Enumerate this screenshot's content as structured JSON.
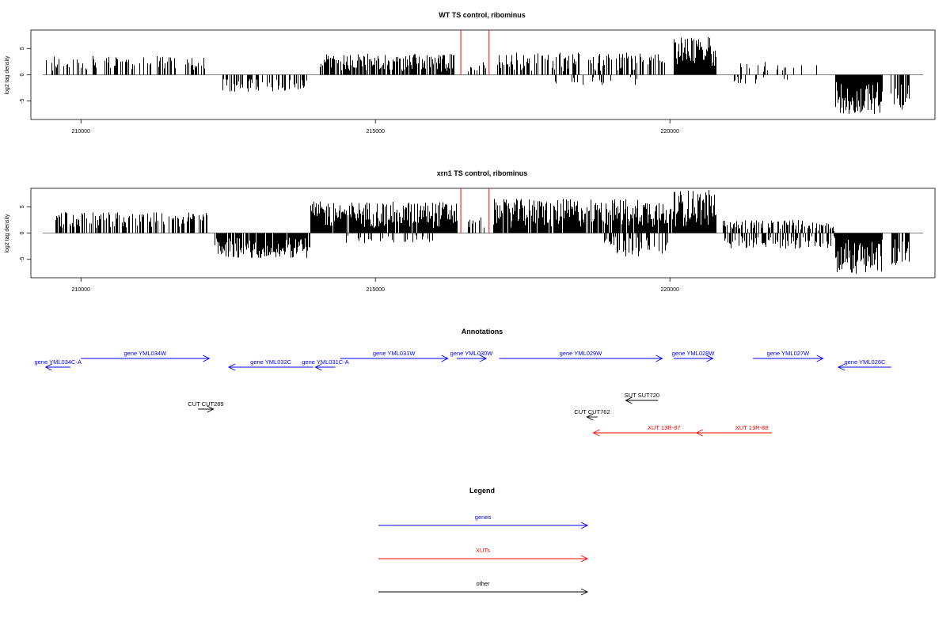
{
  "chart_data": [
    {
      "type": "bar",
      "title": "WT TS control, ribominus",
      "ylabel": "log2 tag density",
      "xlim": [
        209150,
        224500
      ],
      "ylim": [
        -8.5,
        8.5
      ],
      "xticks": [
        210000,
        215000,
        220000
      ],
      "xtick_labels": [
        "210000",
        "215000",
        "220000"
      ],
      "yticks": [
        5,
        0,
        -5
      ],
      "ytick_labels": [
        "5",
        "0",
        "-5"
      ],
      "grid": false,
      "highlight_lines": [
        {
          "x": 216450,
          "y": 8.5,
          "color": "#ff0000"
        },
        {
          "x": 216930,
          "y": 8.5,
          "color": "#ff0000"
        }
      ],
      "density_segments": [
        {
          "x0": 209400,
          "x1": 212100,
          "min": 0,
          "max": 3.6,
          "density": 0.35
        },
        {
          "x0": 212400,
          "x1": 213850,
          "min": -3.3,
          "max": 0,
          "density": 0.45
        },
        {
          "x0": 214050,
          "x1": 216330,
          "min": 0,
          "max": 4.0,
          "density": 0.75
        },
        {
          "x0": 216500,
          "x1": 216880,
          "min": 0,
          "max": 2.5,
          "density": 0.3
        },
        {
          "x0": 217050,
          "x1": 219950,
          "min": 0,
          "max": 4.3,
          "density": 0.5
        },
        {
          "x0": 218000,
          "x1": 219500,
          "min": -2.0,
          "max": 0,
          "density": 0.15
        },
        {
          "x0": 220060,
          "x1": 220780,
          "min": 0,
          "max": 7.2,
          "density": 1.0
        },
        {
          "x0": 221200,
          "x1": 222500,
          "min": 0,
          "max": 2.5,
          "density": 0.25
        },
        {
          "x0": 221000,
          "x1": 222000,
          "min": -1.8,
          "max": 0,
          "density": 0.15
        },
        {
          "x0": 222800,
          "x1": 223600,
          "min": -7.5,
          "max": 0,
          "density": 1.0
        },
        {
          "x0": 223750,
          "x1": 224050,
          "min": -6.8,
          "max": 0,
          "density": 0.7
        }
      ]
    },
    {
      "type": "bar",
      "title": "xrn1 TS control, ribominus",
      "ylabel": "log2 tag density",
      "xlim": [
        209150,
        224500
      ],
      "ylim": [
        -8.5,
        8.5
      ],
      "xticks": [
        210000,
        215000,
        220000
      ],
      "xtick_labels": [
        "210000",
        "215000",
        "220000"
      ],
      "yticks": [
        5,
        0,
        -5
      ],
      "ytick_labels": [
        "5",
        "0",
        "-5"
      ],
      "grid": false,
      "highlight_lines": [
        {
          "x": 216450,
          "y": 8.5,
          "color": "#ff0000"
        },
        {
          "x": 216930,
          "y": 8.5,
          "color": "#ff0000"
        }
      ],
      "density_segments": [
        {
          "x0": 209550,
          "x1": 212150,
          "min": 0,
          "max": 4.0,
          "density": 0.5
        },
        {
          "x0": 212250,
          "x1": 213880,
          "min": -4.8,
          "max": 0,
          "density": 0.9
        },
        {
          "x0": 213900,
          "x1": 216380,
          "min": 0,
          "max": 6.0,
          "density": 0.95
        },
        {
          "x0": 214500,
          "x1": 216000,
          "min": -2.0,
          "max": 0,
          "density": 0.2
        },
        {
          "x0": 216500,
          "x1": 216880,
          "min": 0,
          "max": 3.0,
          "density": 0.35
        },
        {
          "x0": 217000,
          "x1": 220050,
          "min": 0,
          "max": 6.5,
          "density": 0.9
        },
        {
          "x0": 218800,
          "x1": 220000,
          "min": -4.5,
          "max": 0,
          "density": 0.5
        },
        {
          "x0": 220060,
          "x1": 220780,
          "min": 0,
          "max": 8.2,
          "density": 1.0
        },
        {
          "x0": 220900,
          "x1": 222800,
          "min": 0,
          "max": 2.5,
          "density": 0.45
        },
        {
          "x0": 220900,
          "x1": 222800,
          "min": -3.0,
          "max": 0,
          "density": 0.45
        },
        {
          "x0": 222800,
          "x1": 223600,
          "min": -7.8,
          "max": 0,
          "density": 1.0
        },
        {
          "x0": 223750,
          "x1": 224050,
          "min": -6.3,
          "max": 0,
          "density": 0.75
        }
      ]
    }
  ],
  "annotations": {
    "title": "Annotations",
    "features": [
      {
        "label": "gene YML034W",
        "color": "#0000ff",
        "x0": 210000,
        "x1": 212180,
        "direction": "right",
        "row": 0
      },
      {
        "label": "gene YML034C-A",
        "color": "#0000ff",
        "x0": 209400,
        "x1": 209820,
        "direction": "left",
        "row": 1
      },
      {
        "label": "gene YML032C",
        "color": "#0000ff",
        "x0": 212510,
        "x1": 213940,
        "direction": "left",
        "row": 1
      },
      {
        "label": "gene YML031C-A",
        "color": "#0000ff",
        "x0": 213980,
        "x1": 214320,
        "direction": "left",
        "row": 1
      },
      {
        "label": "gene YML031W",
        "color": "#0000ff",
        "x0": 214400,
        "x1": 216230,
        "direction": "right",
        "row": 0
      },
      {
        "label": "gene YML030W",
        "color": "#0000ff",
        "x0": 216380,
        "x1": 216880,
        "direction": "right",
        "row": 0
      },
      {
        "label": "gene YML029W",
        "color": "#0000ff",
        "x0": 217100,
        "x1": 219870,
        "direction": "right",
        "row": 0
      },
      {
        "label": "gene YML028W",
        "color": "#0000ff",
        "x0": 220060,
        "x1": 220730,
        "direction": "right",
        "row": 0
      },
      {
        "label": "gene YML027W",
        "color": "#0000ff",
        "x0": 221410,
        "x1": 222600,
        "direction": "right",
        "row": 0
      },
      {
        "label": "gene YML026C",
        "color": "#0000ff",
        "x0": 222860,
        "x1": 223760,
        "direction": "left",
        "row": 1
      },
      {
        "label": "CUT CUT289",
        "color": "#000000",
        "x0": 211990,
        "x1": 212250,
        "direction": "right",
        "row": 2
      },
      {
        "label": "SUT SUT720",
        "color": "#000000",
        "x0": 219250,
        "x1": 219800,
        "direction": "left",
        "row": 3
      },
      {
        "label": "CUT CUT762",
        "color": "#000000",
        "x0": 218590,
        "x1": 218770,
        "direction": "left",
        "row": 4
      },
      {
        "label": "XUT 13R-87",
        "color": "#ff0000",
        "x0": 218700,
        "x1": 221280,
        "direction": "left",
        "row": 5,
        "label_x": 219900
      },
      {
        "label": "XUT 13R-88",
        "color": "#ff0000",
        "x0": 220450,
        "x1": 221730,
        "direction": "left",
        "row": 5,
        "label_x": 221390
      }
    ]
  },
  "legend": {
    "title": "Legend",
    "items": [
      {
        "label": "genes",
        "color": "#0000ff"
      },
      {
        "label": "XUTs",
        "color": "#ff0000"
      },
      {
        "label": "other",
        "color": "#000000"
      }
    ]
  }
}
